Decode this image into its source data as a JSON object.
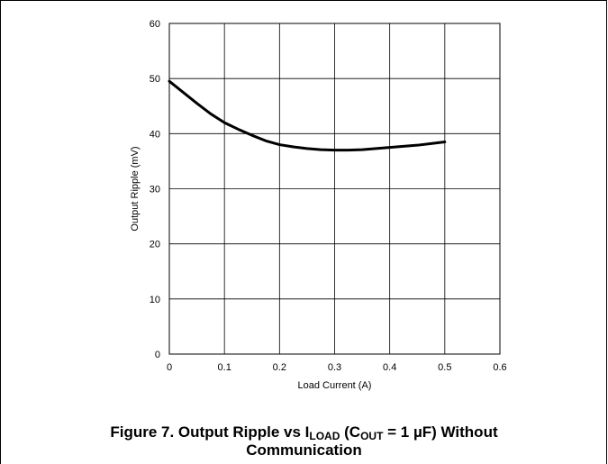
{
  "figure": {
    "caption_prefix": "Figure 7. Output Ripple vs I",
    "caption_sub1": "LOAD",
    "caption_mid1": " (C",
    "caption_sub2": "OUT",
    "caption_mid2": " = 1 µF) Without",
    "caption_line2": "Communication"
  },
  "chart_data": {
    "type": "line",
    "xlabel": "Load Current (A)",
    "ylabel": "Output Ripple (mV)",
    "xlim": [
      0,
      0.6
    ],
    "ylim": [
      0,
      60
    ],
    "x_ticks": [
      0,
      0.1,
      0.2,
      0.3,
      0.4,
      0.5,
      0.6
    ],
    "x_tick_labels": [
      "0",
      "0.1",
      "0.2",
      "0.3",
      "0.4",
      "0.5",
      "0.6"
    ],
    "y_ticks": [
      0,
      10,
      20,
      30,
      40,
      50,
      60
    ],
    "y_tick_labels": [
      "0",
      "10",
      "20",
      "30",
      "40",
      "50",
      "60"
    ],
    "grid": true,
    "series": [
      {
        "color": "#000000",
        "x": [
          0,
          0.025,
          0.05,
          0.075,
          0.1,
          0.125,
          0.15,
          0.175,
          0.2,
          0.225,
          0.25,
          0.275,
          0.3,
          0.325,
          0.35,
          0.375,
          0.4,
          0.425,
          0.45,
          0.475,
          0.5
        ],
        "y": [
          49.5,
          47.5,
          45.5,
          43.6,
          42.0,
          40.8,
          39.7,
          38.7,
          38.0,
          37.6,
          37.3,
          37.1,
          37.0,
          37.0,
          37.1,
          37.3,
          37.5,
          37.7,
          37.9,
          38.2,
          38.5
        ]
      }
    ]
  }
}
